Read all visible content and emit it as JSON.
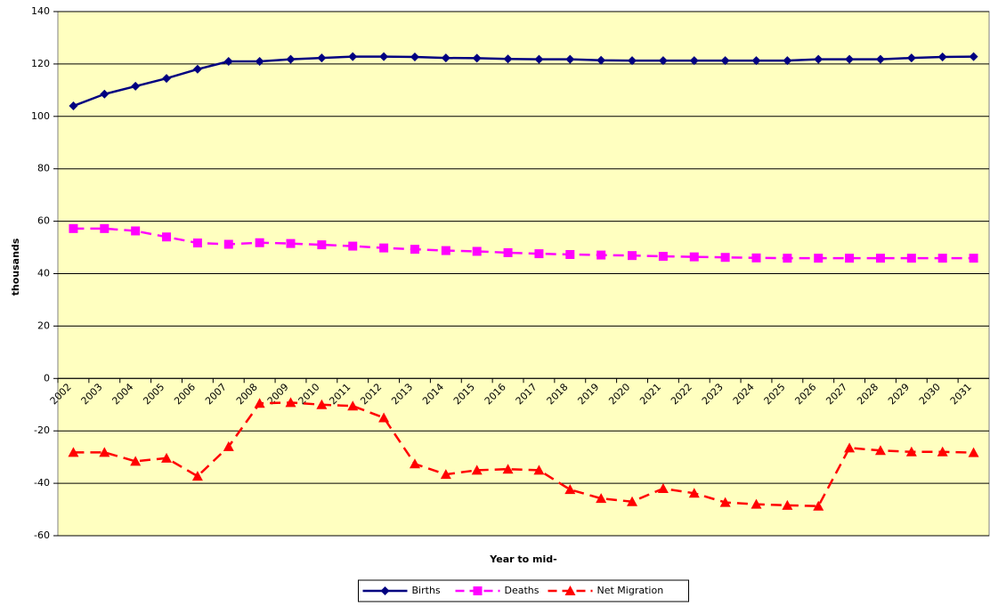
{
  "chart_data": {
    "type": "line",
    "y_label": "thousands",
    "x_label": "Year to mid-",
    "categories": [
      "2002",
      "2003",
      "2004",
      "2005",
      "2006",
      "2007",
      "2008",
      "2009",
      "2010",
      "2011",
      "2012",
      "2013",
      "2014",
      "2015",
      "2016",
      "2017",
      "2018",
      "2019",
      "2020",
      "2021",
      "2022",
      "2023",
      "2024",
      "2025",
      "2026",
      "2027",
      "2028",
      "2029",
      "2030",
      "2031"
    ],
    "series": [
      {
        "name": "Births",
        "color": "#000080",
        "marker": "diamond",
        "dashed": false,
        "values": [
          104,
          108.5,
          111.5,
          114.5,
          118,
          121,
          121,
          121.8,
          122.3,
          122.8,
          122.8,
          122.7,
          122.3,
          122.2,
          121.9,
          121.8,
          121.8,
          121.4,
          121.3,
          121.3,
          121.3,
          121.3,
          121.3,
          121.3,
          121.8,
          121.8,
          121.8,
          122.3,
          122.7,
          122.8
        ]
      },
      {
        "name": "Deaths",
        "color": "#ff00ff",
        "marker": "square",
        "dashed": true,
        "values": [
          57.2,
          57.2,
          56.3,
          54,
          51.7,
          51.2,
          51.8,
          51.5,
          51,
          50.5,
          49.8,
          49.3,
          48.8,
          48.5,
          48,
          47.6,
          47.3,
          47.1,
          46.9,
          46.6,
          46.4,
          46.2,
          46,
          45.9,
          45.9,
          45.9,
          45.9,
          45.9,
          45.9,
          45.9
        ]
      },
      {
        "name": "Net Migration",
        "color": "#ff0000",
        "marker": "triangle",
        "dashed": true,
        "values": [
          -28.2,
          -28.2,
          -31.6,
          -30.4,
          -37.3,
          -26,
          -9.5,
          -9.2,
          -10,
          -10.5,
          -15,
          -32.6,
          -36.6,
          -35,
          -34.6,
          -35,
          -42.4,
          -45.8,
          -47,
          -42,
          -43.8,
          -47.3,
          -48,
          -48.4,
          -48.7,
          -26.5,
          -27.5,
          -28,
          -28,
          -28.3
        ]
      }
    ],
    "ylim": [
      -60,
      140
    ],
    "yticks": [
      -60,
      -40,
      -20,
      0,
      20,
      40,
      60,
      80,
      100,
      120,
      140
    ],
    "grid": true,
    "legend": "bottom",
    "plot_background": "#ffffc0"
  }
}
